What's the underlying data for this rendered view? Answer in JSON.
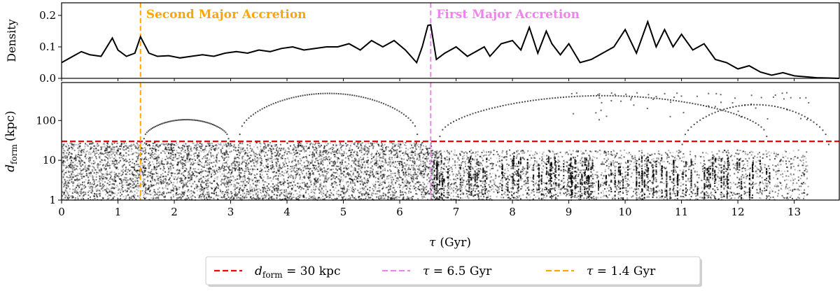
{
  "chart_data": [
    {
      "type": "line",
      "panel": "top",
      "ylabel": "Density",
      "xlim": [
        0,
        13.8
      ],
      "ylim": [
        0,
        0.24
      ],
      "yticks": [
        "0.0",
        "0.1",
        "0.2"
      ],
      "ytick_values": [
        0.0,
        0.1,
        0.2
      ],
      "series": [
        {
          "name": "Density",
          "x": [
            0,
            0.2,
            0.35,
            0.5,
            0.7,
            0.9,
            1.0,
            1.15,
            1.3,
            1.4,
            1.55,
            1.7,
            1.9,
            2.1,
            2.3,
            2.5,
            2.7,
            2.9,
            3.1,
            3.3,
            3.5,
            3.7,
            3.9,
            4.1,
            4.3,
            4.5,
            4.7,
            4.9,
            5.1,
            5.3,
            5.5,
            5.7,
            5.9,
            6.1,
            6.3,
            6.4,
            6.5,
            6.55,
            6.65,
            6.8,
            7.0,
            7.2,
            7.4,
            7.5,
            7.6,
            7.8,
            8.0,
            8.15,
            8.3,
            8.45,
            8.6,
            8.7,
            8.85,
            9.0,
            9.2,
            9.4,
            9.6,
            9.8,
            10.0,
            10.2,
            10.4,
            10.55,
            10.7,
            10.85,
            11.0,
            11.2,
            11.4,
            11.6,
            11.8,
            12.0,
            12.2,
            12.4,
            12.6,
            12.8,
            13.0,
            13.2,
            13.4,
            13.6,
            13.8
          ],
          "values": [
            0.05,
            0.07,
            0.085,
            0.075,
            0.07,
            0.128,
            0.09,
            0.07,
            0.08,
            0.132,
            0.08,
            0.07,
            0.072,
            0.065,
            0.07,
            0.075,
            0.07,
            0.08,
            0.085,
            0.08,
            0.09,
            0.085,
            0.095,
            0.1,
            0.09,
            0.095,
            0.1,
            0.1,
            0.11,
            0.09,
            0.12,
            0.1,
            0.12,
            0.09,
            0.05,
            0.1,
            0.168,
            0.17,
            0.06,
            0.08,
            0.1,
            0.07,
            0.09,
            0.1,
            0.07,
            0.11,
            0.12,
            0.09,
            0.162,
            0.08,
            0.15,
            0.11,
            0.075,
            0.11,
            0.05,
            0.06,
            0.08,
            0.1,
            0.155,
            0.08,
            0.18,
            0.1,
            0.155,
            0.1,
            0.14,
            0.09,
            0.11,
            0.06,
            0.05,
            0.03,
            0.04,
            0.02,
            0.01,
            0.018,
            0.008,
            0.005,
            0.002,
            0.001,
            0.0
          ],
          "color": "#000000"
        }
      ],
      "annotations": [
        {
          "text": "Second Major Accretion",
          "x": 1.4,
          "color": "#ffa500"
        },
        {
          "text": "First Major Accretion",
          "x": 6.55,
          "color": "#ee82ee"
        }
      ]
    },
    {
      "type": "scatter",
      "panel": "bottom",
      "ylabel_main": "d",
      "ylabel_sub": "form",
      "ylabel_unit": "(kpc)",
      "yscale": "log",
      "ylim": [
        1,
        900
      ],
      "yticks": [
        "1",
        "10",
        "100"
      ],
      "ytick_values": [
        1,
        10,
        100
      ],
      "xlabel_sym": "τ",
      "xlabel_unit": "(Gyr)",
      "xlim": [
        0,
        13.8
      ],
      "xticks": [
        "0",
        "1",
        "2",
        "3",
        "4",
        "5",
        "6",
        "7",
        "8",
        "9",
        "10",
        "11",
        "12",
        "13"
      ],
      "xtick_values": [
        0,
        1,
        2,
        3,
        4,
        5,
        6,
        7,
        8,
        9,
        10,
        11,
        12,
        13
      ],
      "hlines": [
        {
          "y": 30,
          "color": "#ff0000"
        }
      ],
      "vlines": [
        {
          "x": 6.55,
          "color": "#ee82ee"
        },
        {
          "x": 1.4,
          "color": "#ffa500"
        }
      ],
      "point_color": "#000000"
    }
  ],
  "legend": {
    "placement": "bottom-center",
    "entries": [
      {
        "prefix": "d",
        "sub": "form",
        "rest": " = 30 kpc",
        "color": "#ff0000"
      },
      {
        "prefix": "τ",
        "sub": "",
        "rest": " = 6.5 Gyr",
        "color": "#ee82ee"
      },
      {
        "prefix": "τ",
        "sub": "",
        "rest": " = 1.4 Gyr",
        "color": "#ffa500"
      }
    ]
  }
}
